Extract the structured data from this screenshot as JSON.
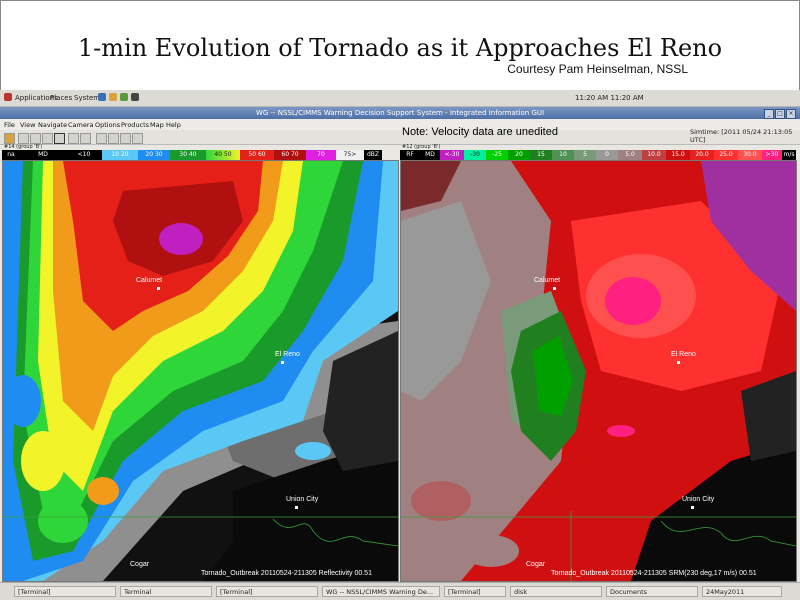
{
  "slide": {
    "title": "1-min Evolution of Tornado as it Approaches El Reno",
    "courtesy": "Courtesy Pam Heinselman, NSSL"
  },
  "desktop": {
    "menu_items": [
      "Applications",
      "Places",
      "System"
    ],
    "clock": "11:20 AM  11:20 AM"
  },
  "window": {
    "title": "WG -- NSSL/CIMMS Warning Decision Support System - Integrated Information GUI",
    "menu": [
      "File",
      "View",
      "Navigate",
      "Camera",
      "Options",
      "Products",
      "Map",
      "Help"
    ],
    "simtime": "Simtime: [2011 05/24 21:13:05 UTC]",
    "note": "Note: Velocity data are unedited"
  },
  "left_panel": {
    "header": "#14 (group 'B')",
    "scale_start": [
      "na",
      "MD"
    ],
    "scale": [
      "<10",
      "10 20",
      "20 30",
      "30 40",
      "40 50",
      "50 60",
      "60 70",
      "70",
      "75>"
    ],
    "scale_unit": "dBZ",
    "cities": [
      "Calumet",
      "El Reno",
      "Union City",
      "Cogar"
    ],
    "caption": "Tornado_Outbreak 20110524-211305 Reflectivity 00.51"
  },
  "right_panel": {
    "header": "#12 (group 'B')",
    "scale_start": [
      "RF",
      "MD"
    ],
    "scale": [
      "<-30",
      "-30",
      "-25",
      "20",
      "15",
      "10",
      "5",
      "0",
      "5.0",
      "10.0",
      "15.0",
      "20.0",
      "25.0",
      "30.0",
      ">30"
    ],
    "scale_unit": "m/s",
    "cities": [
      "Calumet",
      "El Reno",
      "Union City",
      "Cogar"
    ],
    "caption": "Tornado_Outbreak 20110524-211305 SRM(230 deg,17 m/s) 00.51"
  },
  "taskbar": {
    "items": [
      "[Terminal]",
      "Terminal",
      "[Terminal]",
      "WG -- NSSL/CIMMS Warning De...",
      "[Terminal]",
      "disk",
      "Documents",
      "24May2011"
    ]
  },
  "colors": {
    "refl_scale": [
      "#9a9a9a",
      "#5bc7f5",
      "#1e8cf0",
      "#1a9a2a",
      "#2fd63a",
      "#f3f32a",
      "#f29a1a",
      "#e42018",
      "#b01010",
      "#e020e0",
      "#f0c0f0"
    ],
    "vel_scale": [
      "#c020c0",
      "#00f0a0",
      "#00d000",
      "#00a000",
      "#208020",
      "#509050",
      "#7a9a7a",
      "#999999",
      "#a08080",
      "#c04040",
      "#d01010",
      "#e82020",
      "#ff3030",
      "#ff5050",
      "#ff2080"
    ]
  }
}
